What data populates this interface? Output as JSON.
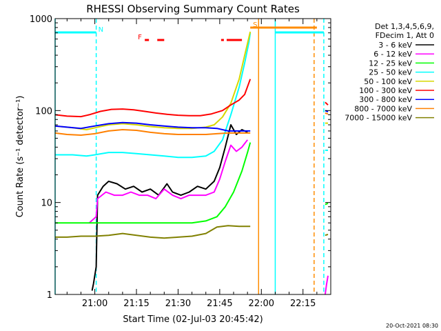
{
  "chart_data": {
    "type": "line",
    "title": "RHESSI Observing Summary Count Rates",
    "xlabel": "Start Time (02-Jul-03 20:45:42)",
    "ylabel": "Count Rate (s⁻¹ detector⁻¹)",
    "y_scale": "log",
    "ylim": [
      1,
      1000
    ],
    "xlim": [
      "20:45:42",
      "22:25:00"
    ],
    "x_ticks": [
      "21:00",
      "21:15",
      "21:30",
      "21:45",
      "22:00",
      "22:15"
    ],
    "y_ticks": [
      "1",
      "10",
      "100",
      "1000"
    ],
    "legend_header": [
      "Det 1,3,4,5,6,9,",
      "FDecim 1, Att 0"
    ],
    "legend_placement": "right",
    "timestamp": "20-Oct-2021 08:30",
    "flags": [
      {
        "label": "N",
        "color": "#00ffff",
        "intervals": [
          [
            "20:45:42",
            "21:00:30"
          ],
          [
            "22:05:00",
            "22:22:30"
          ]
        ]
      },
      {
        "label": "F",
        "color": "#ff0000",
        "intervals": [
          [
            "21:18:00",
            "21:19:30"
          ],
          [
            "21:22:30",
            "21:25:00"
          ],
          [
            "21:45:30",
            "21:46:30"
          ],
          [
            "21:47:30",
            "21:53:00"
          ]
        ]
      },
      {
        "label": "S",
        "color": "#ff8c00",
        "intervals": [
          [
            "21:56:00",
            "22:20:00"
          ]
        ]
      }
    ],
    "vlines": [
      {
        "time": "20:45:42",
        "color": "#00ffff",
        "style": "solid"
      },
      {
        "time": "21:00:30",
        "color": "#00ffff",
        "style": "dashed"
      },
      {
        "time": "21:59:00",
        "color": "#ff8c00",
        "style": "solid"
      },
      {
        "time": "22:05:00",
        "color": "#00ffff",
        "style": "solid"
      },
      {
        "time": "22:19:00",
        "color": "#ff8c00",
        "style": "dashed"
      },
      {
        "time": "22:22:30",
        "color": "#00ffff",
        "style": "dashed"
      }
    ],
    "series": [
      {
        "name": "3 - 6 keV",
        "color": "#000000",
        "segments": [
          [
            [
              "20:59:00",
              1.1
            ],
            [
              "20:59:30",
              1.3
            ],
            [
              "21:00:30",
              2
            ],
            [
              "21:01:00",
              12
            ],
            [
              "21:03:00",
              15
            ],
            [
              "21:05:00",
              17
            ],
            [
              "21:08:00",
              16
            ],
            [
              "21:11:00",
              14
            ],
            [
              "21:14:00",
              15
            ],
            [
              "21:17:00",
              13
            ],
            [
              "21:20:00",
              14
            ],
            [
              "21:23:00",
              12
            ],
            [
              "21:26:00",
              16
            ],
            [
              "21:28:00",
              13
            ],
            [
              "21:31:00",
              12
            ],
            [
              "21:34:00",
              13
            ],
            [
              "21:37:00",
              15
            ],
            [
              "21:40:00",
              14
            ],
            [
              "21:43:00",
              17
            ],
            [
              "21:45:00",
              24
            ],
            [
              "21:47:00",
              40
            ],
            [
              "21:49:00",
              70
            ],
            [
              "21:51:00",
              55
            ],
            [
              "21:53:00",
              62
            ],
            [
              "21:55:00",
              58
            ]
          ]
        ]
      },
      {
        "name": "6 - 12 keV",
        "color": "#ff00ff",
        "segments": [
          [
            [
              "20:58:00",
              6
            ],
            [
              "21:00:30",
              7
            ],
            [
              "21:01:00",
              11
            ],
            [
              "21:04:00",
              13
            ],
            [
              "21:07:00",
              12
            ],
            [
              "21:10:00",
              12
            ],
            [
              "21:13:00",
              13
            ],
            [
              "21:16:00",
              12
            ],
            [
              "21:19:00",
              12
            ],
            [
              "21:22:00",
              11
            ],
            [
              "21:25:00",
              14
            ],
            [
              "21:28:00",
              12
            ],
            [
              "21:31:00",
              11
            ],
            [
              "21:34:00",
              12
            ],
            [
              "21:37:00",
              12
            ],
            [
              "21:40:00",
              12
            ],
            [
              "21:43:00",
              13
            ],
            [
              "21:45:00",
              18
            ],
            [
              "21:47:00",
              28
            ],
            [
              "21:49:00",
              42
            ],
            [
              "21:51:00",
              36
            ],
            [
              "21:53:00",
              40
            ],
            [
              "21:55:00",
              48
            ]
          ],
          [
            [
              "22:23:00",
              1
            ],
            [
              "22:23:30",
              1.3
            ],
            [
              "22:24:00",
              1.6
            ]
          ]
        ]
      },
      {
        "name": "12 - 25 keV",
        "color": "#00ff00",
        "segments": [
          [
            [
              "20:45:42",
              6
            ],
            [
              "20:50:00",
              6
            ],
            [
              "20:55:00",
              6
            ],
            [
              "21:00:00",
              6
            ],
            [
              "21:05:00",
              6
            ],
            [
              "21:10:00",
              6
            ],
            [
              "21:15:00",
              6
            ],
            [
              "21:20:00",
              6
            ],
            [
              "21:25:00",
              6
            ],
            [
              "21:30:00",
              6
            ],
            [
              "21:35:00",
              6
            ],
            [
              "21:40:00",
              6.3
            ],
            [
              "21:44:00",
              7
            ],
            [
              "21:47:00",
              9
            ],
            [
              "21:50:00",
              13
            ],
            [
              "21:53:00",
              22
            ],
            [
              "21:55:00",
              35
            ],
            [
              "21:56:00",
              45
            ]
          ],
          [
            [
              "22:23:00",
              9.5
            ],
            [
              "22:24:00",
              9.8
            ]
          ]
        ]
      },
      {
        "name": "25 - 50 keV",
        "color": "#00ffff",
        "segments": [
          [
            [
              "20:45:42",
              33
            ],
            [
              "20:52:00",
              33
            ],
            [
              "20:57:00",
              32
            ],
            [
              "21:00:00",
              33
            ],
            [
              "21:05:00",
              35
            ],
            [
              "21:10:00",
              35
            ],
            [
              "21:15:00",
              34
            ],
            [
              "21:20:00",
              33
            ],
            [
              "21:25:00",
              32
            ],
            [
              "21:30:00",
              31
            ],
            [
              "21:35:00",
              31
            ],
            [
              "21:40:00",
              32
            ],
            [
              "21:43:00",
              36
            ],
            [
              "21:46:00",
              48
            ],
            [
              "21:49:00",
              90
            ],
            [
              "21:52:00",
              180
            ],
            [
              "21:54:00",
              330
            ],
            [
              "21:55:30",
              550
            ],
            [
              "21:56:00",
              700
            ]
          ],
          [
            [
              "22:23:00",
              37
            ],
            [
              "22:24:00",
              37
            ]
          ]
        ]
      },
      {
        "name": "50 - 100 keV",
        "color": "#d7d700",
        "segments": [
          [
            [
              "20:45:42",
              68
            ],
            [
              "20:52:00",
              65
            ],
            [
              "20:57:00",
              62
            ],
            [
              "21:00:00",
              65
            ],
            [
              "21:05:00",
              70
            ],
            [
              "21:10:00",
              72
            ],
            [
              "21:15:00",
              70
            ],
            [
              "21:20:00",
              67
            ],
            [
              "21:25:00",
              65
            ],
            [
              "21:30:00",
              64
            ],
            [
              "21:35:00",
              64
            ],
            [
              "21:40:00",
              66
            ],
            [
              "21:43:00",
              70
            ],
            [
              "21:46:00",
              85
            ],
            [
              "21:49:00",
              120
            ],
            [
              "21:52:00",
              220
            ],
            [
              "21:54:00",
              400
            ],
            [
              "21:56:00",
              720
            ]
          ],
          [
            [
              "22:23:00",
              73
            ],
            [
              "22:24:00",
              73
            ]
          ]
        ]
      },
      {
        "name": "100 - 300 keV",
        "color": "#ff0000",
        "segments": [
          [
            [
              "20:45:42",
              90
            ],
            [
              "20:50:00",
              87
            ],
            [
              "20:55:00",
              86
            ],
            [
              "20:58:00",
              90
            ],
            [
              "21:02:00",
              98
            ],
            [
              "21:06:00",
              103
            ],
            [
              "21:10:00",
              104
            ],
            [
              "21:14:00",
              102
            ],
            [
              "21:18:00",
              98
            ],
            [
              "21:22:00",
              94
            ],
            [
              "21:26:00",
              91
            ],
            [
              "21:30:00",
              89
            ],
            [
              "21:34:00",
              88
            ],
            [
              "21:38:00",
              88
            ],
            [
              "21:42:00",
              92
            ],
            [
              "21:46:00",
              100
            ],
            [
              "21:49:00",
              115
            ],
            [
              "21:52:00",
              130
            ],
            [
              "21:54:00",
              150
            ],
            [
              "21:56:00",
              220
            ]
          ],
          [
            [
              "22:23:00",
              123
            ],
            [
              "22:24:00",
              115
            ]
          ]
        ]
      },
      {
        "name": "300 - 800 keV",
        "color": "#0000ff",
        "segments": [
          [
            [
              "20:45:42",
              68
            ],
            [
              "20:50:00",
              66
            ],
            [
              "20:55:00",
              64
            ],
            [
              "21:00:00",
              68
            ],
            [
              "21:05:00",
              72
            ],
            [
              "21:10:00",
              74
            ],
            [
              "21:15:00",
              73
            ],
            [
              "21:20:00",
              70
            ],
            [
              "21:25:00",
              68
            ],
            [
              "21:30:00",
              66
            ],
            [
              "21:35:00",
              65
            ],
            [
              "21:40:00",
              65
            ],
            [
              "21:44:00",
              64
            ],
            [
              "21:48:00",
              60
            ],
            [
              "21:52:00",
              60
            ],
            [
              "21:56:00",
              60
            ]
          ],
          [
            [
              "22:23:00",
              100
            ],
            [
              "22:24:00",
              97
            ]
          ]
        ]
      },
      {
        "name": "800 - 7000 keV",
        "color": "#ff8000",
        "segments": [
          [
            [
              "20:45:42",
              57
            ],
            [
              "20:50:00",
              55
            ],
            [
              "20:55:00",
              54
            ],
            [
              "21:00:00",
              56
            ],
            [
              "21:05:00",
              60
            ],
            [
              "21:10:00",
              62
            ],
            [
              "21:15:00",
              61
            ],
            [
              "21:20:00",
              58
            ],
            [
              "21:25:00",
              56
            ],
            [
              "21:30:00",
              55
            ],
            [
              "21:35:00",
              55
            ],
            [
              "21:40:00",
              55
            ],
            [
              "21:44:00",
              56
            ],
            [
              "21:48:00",
              57
            ],
            [
              "21:52:00",
              57
            ],
            [
              "21:56:00",
              57
            ]
          ],
          [
            [
              "22:23:00",
              94
            ],
            [
              "22:24:00",
              92
            ]
          ]
        ]
      },
      {
        "name": "7000 - 15000 keV",
        "color": "#808000",
        "segments": [
          [
            [
              "20:45:42",
              4.2
            ],
            [
              "20:50:00",
              4.2
            ],
            [
              "20:55:00",
              4.3
            ],
            [
              "21:00:00",
              4.3
            ],
            [
              "21:05:00",
              4.4
            ],
            [
              "21:10:00",
              4.6
            ],
            [
              "21:15:00",
              4.4
            ],
            [
              "21:20:00",
              4.2
            ],
            [
              "21:25:00",
              4.1
            ],
            [
              "21:30:00",
              4.2
            ],
            [
              "21:35:00",
              4.3
            ],
            [
              "21:40:00",
              4.6
            ],
            [
              "21:44:00",
              5.4
            ],
            [
              "21:48:00",
              5.6
            ],
            [
              "21:52:00",
              5.5
            ],
            [
              "21:56:00",
              5.5
            ]
          ],
          [
            [
              "22:23:00",
              4.4
            ],
            [
              "22:24:00",
              4.5
            ]
          ]
        ]
      }
    ]
  }
}
